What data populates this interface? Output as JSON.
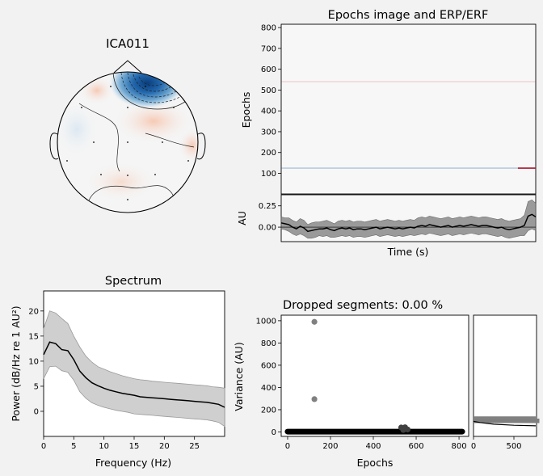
{
  "figure": {
    "background": "#f2f2f2",
    "accent_colors": {
      "positive": "#b2182b",
      "negative": "#08306b",
      "band": "#808080"
    }
  },
  "chart_data": [
    {
      "type": "heatmap",
      "panel": "topomap",
      "title": "ICA011",
      "description_values": {
        "frontal_peak_sign": "negative",
        "colormap": "RdBu_r"
      }
    },
    {
      "type": "heatmap",
      "panel": "epochs_image",
      "title": "Epochs image and ERP/ERF",
      "ylabel": "Epochs",
      "yticks": [
        100,
        200,
        300,
        400,
        500,
        600,
        700,
        800
      ],
      "ylim": [
        1,
        816
      ],
      "streaks": [
        {
          "epoch": 540,
          "sign": "positive",
          "strength": 0.15
        },
        {
          "epoch": 125,
          "sign": "negative",
          "strength": 0.3
        },
        {
          "epoch": 125,
          "sign": "positive",
          "strength": 1.0,
          "x_start": 0.93
        }
      ]
    },
    {
      "type": "line",
      "panel": "erp",
      "xlabel": "Time (s)",
      "ylabel": "AU",
      "yticks": [
        0.25,
        0.0
      ],
      "yticks_label": [
        "0.25",
        "0.00"
      ],
      "ylim": [
        -0.17,
        0.38
      ],
      "mean": [
        0.05,
        0.04,
        0.03,
        0.0,
        -0.02,
        0.01,
        -0.01,
        -0.05,
        -0.04,
        -0.03,
        -0.02,
        -0.02,
        -0.01,
        -0.03,
        -0.04,
        -0.02,
        -0.01,
        -0.02,
        -0.01,
        -0.03,
        -0.02,
        -0.02,
        -0.03,
        -0.02,
        -0.01,
        0.0,
        -0.02,
        -0.01,
        0.0,
        -0.01,
        -0.02,
        -0.01,
        -0.02,
        -0.01,
        0.0,
        -0.01,
        0.01,
        0.02,
        0.01,
        0.03,
        0.02,
        0.01,
        0.0,
        0.01,
        0.02,
        0.0,
        0.01,
        0.02,
        0.01,
        0.02,
        0.03,
        0.02,
        0.01,
        0.02,
        0.02,
        0.01,
        0.0,
        -0.01,
        0.0,
        -0.02,
        -0.03,
        -0.02,
        -0.01,
        0.0,
        0.02,
        0.13,
        0.15,
        0.12
      ],
      "band_halfwidth": [
        0.07,
        0.07,
        0.08,
        0.08,
        0.08,
        0.09,
        0.09,
        0.08,
        0.09,
        0.09,
        0.08,
        0.09,
        0.09,
        0.09,
        0.08,
        0.09,
        0.09,
        0.09,
        0.09,
        0.09,
        0.09,
        0.09,
        0.09,
        0.09,
        0.09,
        0.09,
        0.09,
        0.09,
        0.09,
        0.09,
        0.09,
        0.09,
        0.09,
        0.09,
        0.09,
        0.09,
        0.1,
        0.1,
        0.1,
        0.1,
        0.1,
        0.1,
        0.1,
        0.1,
        0.1,
        0.1,
        0.1,
        0.1,
        0.1,
        0.1,
        0.1,
        0.1,
        0.1,
        0.1,
        0.1,
        0.1,
        0.1,
        0.1,
        0.1,
        0.1,
        0.1,
        0.1,
        0.1,
        0.1,
        0.12,
        0.17,
        0.17,
        0.16
      ]
    },
    {
      "type": "line",
      "panel": "spectrum",
      "title": "Spectrum",
      "xlabel": "Frequency (Hz)",
      "ylabel": "Power (dB/Hz re 1 AU²)",
      "xlim": [
        0,
        30
      ],
      "ylim": [
        -5,
        24
      ],
      "xticks": [
        0,
        5,
        10,
        15,
        20,
        25
      ],
      "yticks": [
        0,
        5,
        10,
        15,
        20
      ],
      "x": [
        0,
        1,
        2,
        3,
        4,
        5,
        6,
        7,
        8,
        9,
        10,
        11,
        12,
        13,
        14,
        15,
        16,
        17,
        18,
        19,
        20,
        21,
        22,
        23,
        24,
        25,
        26,
        27,
        28,
        29,
        30
      ],
      "mean": [
        11.3,
        13.8,
        13.5,
        12.3,
        12.1,
        10.3,
        8.0,
        6.7,
        5.7,
        5.1,
        4.6,
        4.2,
        3.9,
        3.6,
        3.4,
        3.2,
        2.9,
        2.8,
        2.7,
        2.6,
        2.5,
        2.4,
        2.3,
        2.2,
        2.1,
        2.0,
        1.9,
        1.8,
        1.6,
        1.4,
        0.8
      ],
      "upper": [
        16.5,
        20.0,
        19.6,
        18.5,
        17.5,
        15.0,
        12.8,
        11.0,
        9.8,
        8.9,
        8.4,
        7.9,
        7.5,
        7.1,
        6.8,
        6.5,
        6.3,
        6.2,
        6.0,
        5.9,
        5.8,
        5.7,
        5.6,
        5.5,
        5.4,
        5.3,
        5.2,
        5.1,
        4.9,
        4.8,
        4.6
      ],
      "lower": [
        6.5,
        8.9,
        9.0,
        8.1,
        7.8,
        6.2,
        3.9,
        2.6,
        1.7,
        1.2,
        0.8,
        0.5,
        0.2,
        0.0,
        -0.2,
        -0.5,
        -0.6,
        -0.7,
        -0.8,
        -0.9,
        -1.0,
        -1.1,
        -1.2,
        -1.3,
        -1.4,
        -1.5,
        -1.6,
        -1.7,
        -1.9,
        -2.2,
        -3.0
      ]
    },
    {
      "type": "scatter",
      "panel": "dropped_segments",
      "title": "Dropped segments: 0.00 %",
      "xlabel": "Epochs",
      "ylabel": "Variance (AU)",
      "xlim": [
        -30,
        845
      ],
      "ylim": [
        -40,
        1050
      ],
      "xticks": [
        0,
        200,
        400,
        600,
        800
      ],
      "yticks": [
        0,
        200,
        400,
        600,
        800,
        1000
      ],
      "baseline": {
        "x_start": 0,
        "x_end": 815,
        "y": 3
      },
      "outliers": [
        {
          "x": 125,
          "y": 990
        },
        {
          "x": 125,
          "y": 295
        },
        {
          "x": 530,
          "y": 40
        },
        {
          "x": 548,
          "y": 42
        },
        {
          "x": 560,
          "y": 22
        },
        {
          "x": 540,
          "y": 18
        }
      ]
    },
    {
      "type": "bar",
      "panel": "variance_histogram",
      "xticks": [
        0,
        500
      ],
      "xlim": [
        0,
        780
      ],
      "ylim": [
        -40,
        1050
      ],
      "bars": [
        {
          "y_start": 80,
          "y_end": 120,
          "count": 815
        },
        {
          "y_start": 120,
          "y_end": 140,
          "count": 770
        }
      ],
      "density_curve": [
        [
          0,
          95
        ],
        [
          80,
          85
        ],
        [
          250,
          70
        ],
        [
          500,
          60
        ],
        [
          770,
          55
        ]
      ]
    }
  ]
}
